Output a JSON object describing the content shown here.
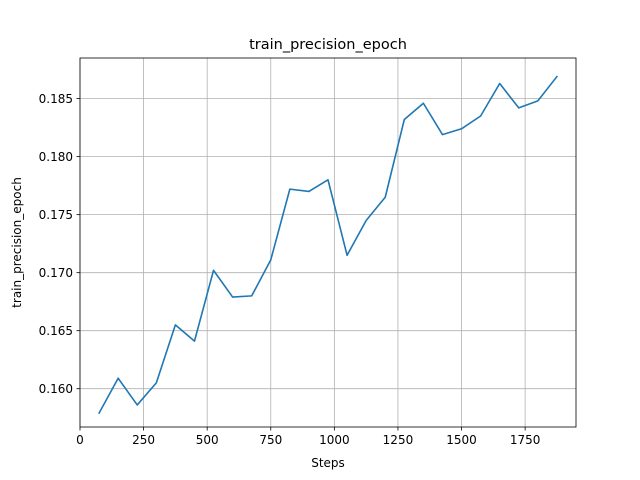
{
  "chart_data": {
    "type": "line",
    "title": "train_precision_epoch",
    "xlabel": "Steps",
    "ylabel": "train_precision_epoch",
    "xlim": [
      0,
      1950
    ],
    "ylim": [
      0.1567,
      0.1885
    ],
    "x_ticks": [
      0,
      250,
      500,
      750,
      1000,
      1250,
      1500,
      1750
    ],
    "x_tick_labels": [
      "0",
      "250",
      "500",
      "750",
      "1000",
      "1250",
      "1500",
      "1750"
    ],
    "y_ticks": [
      0.16,
      0.165,
      0.17,
      0.175,
      0.18,
      0.185
    ],
    "y_tick_labels": [
      "0.160",
      "0.165",
      "0.170",
      "0.175",
      "0.180",
      "0.185"
    ],
    "grid": true,
    "series": [
      {
        "color": "#1f77b4",
        "x": [
          75,
          150,
          225,
          300,
          375,
          450,
          525,
          600,
          675,
          750,
          825,
          900,
          975,
          1050,
          1125,
          1200,
          1275,
          1350,
          1425,
          1500,
          1575,
          1650,
          1725,
          1800,
          1875
        ],
        "y": [
          0.1579,
          0.1609,
          0.1586,
          0.1605,
          0.1655,
          0.1641,
          0.1702,
          0.1679,
          0.168,
          0.1711,
          0.1772,
          0.177,
          0.178,
          0.1715,
          0.1745,
          0.1765,
          0.1832,
          0.1846,
          0.1819,
          0.1824,
          0.1835,
          0.1863,
          0.1842,
          0.1848,
          0.1869
        ]
      }
    ]
  }
}
